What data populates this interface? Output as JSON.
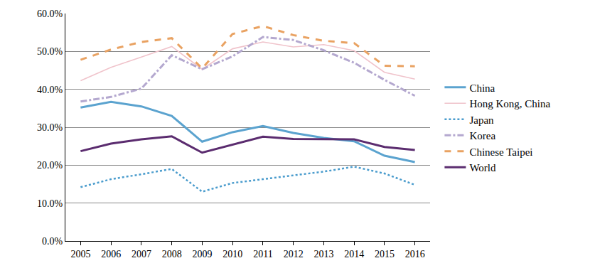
{
  "chart_data": {
    "type": "line",
    "categories": [
      "2005",
      "2006",
      "2007",
      "2008",
      "2009",
      "2010",
      "2011",
      "2012",
      "2013",
      "2014",
      "2015",
      "2016"
    ],
    "series": [
      {
        "name": "China",
        "color": "#5ba3cf",
        "line_style": "solid",
        "values": [
          35.2,
          36.7,
          35.5,
          33.0,
          26.2,
          28.7,
          30.3,
          28.5,
          27.2,
          26.3,
          22.5,
          20.8
        ]
      },
      {
        "name": "Hong Kong, China",
        "color": "#f0c3cb",
        "line_style": "solid",
        "values": [
          42.3,
          45.8,
          48.5,
          51.3,
          45.3,
          50.7,
          52.5,
          51.2,
          51.8,
          50.2,
          44.5,
          42.7
        ]
      },
      {
        "name": "Japan",
        "color": "#4a9ccd",
        "line_style": "dot",
        "values": [
          14.2,
          16.3,
          17.6,
          19.0,
          13.0,
          15.3,
          16.3,
          17.3,
          18.3,
          19.6,
          17.8,
          14.8
        ]
      },
      {
        "name": "Korea",
        "color": "#b4a8cf",
        "line_style": "dashdot",
        "values": [
          36.8,
          38.0,
          40.2,
          49.0,
          45.3,
          48.7,
          53.8,
          53.0,
          50.3,
          47.0,
          42.5,
          38.3
        ]
      },
      {
        "name": "Chinese Taipei",
        "color": "#e9a262",
        "line_style": "dash",
        "values": [
          47.8,
          50.5,
          52.5,
          53.5,
          45.5,
          54.6,
          56.7,
          54.3,
          52.8,
          52.2,
          46.2,
          46.1
        ]
      },
      {
        "name": "World",
        "color": "#5b2c6f",
        "line_style": "solid",
        "values": [
          23.7,
          25.7,
          26.8,
          27.6,
          23.3,
          25.4,
          27.5,
          26.9,
          26.8,
          26.8,
          24.8,
          24.0
        ]
      }
    ],
    "ylim": [
      0,
      60
    ],
    "yticks": [
      {
        "value": 0,
        "label": "0.0%"
      },
      {
        "value": 10,
        "label": "10.0%"
      },
      {
        "value": 20,
        "label": "20.0%"
      },
      {
        "value": 30,
        "label": "30.0%"
      },
      {
        "value": 40,
        "label": "40.0%"
      },
      {
        "value": 50,
        "label": "50.0%"
      },
      {
        "value": 60,
        "label": "60.0%"
      }
    ],
    "grid": true,
    "legend": "right"
  }
}
